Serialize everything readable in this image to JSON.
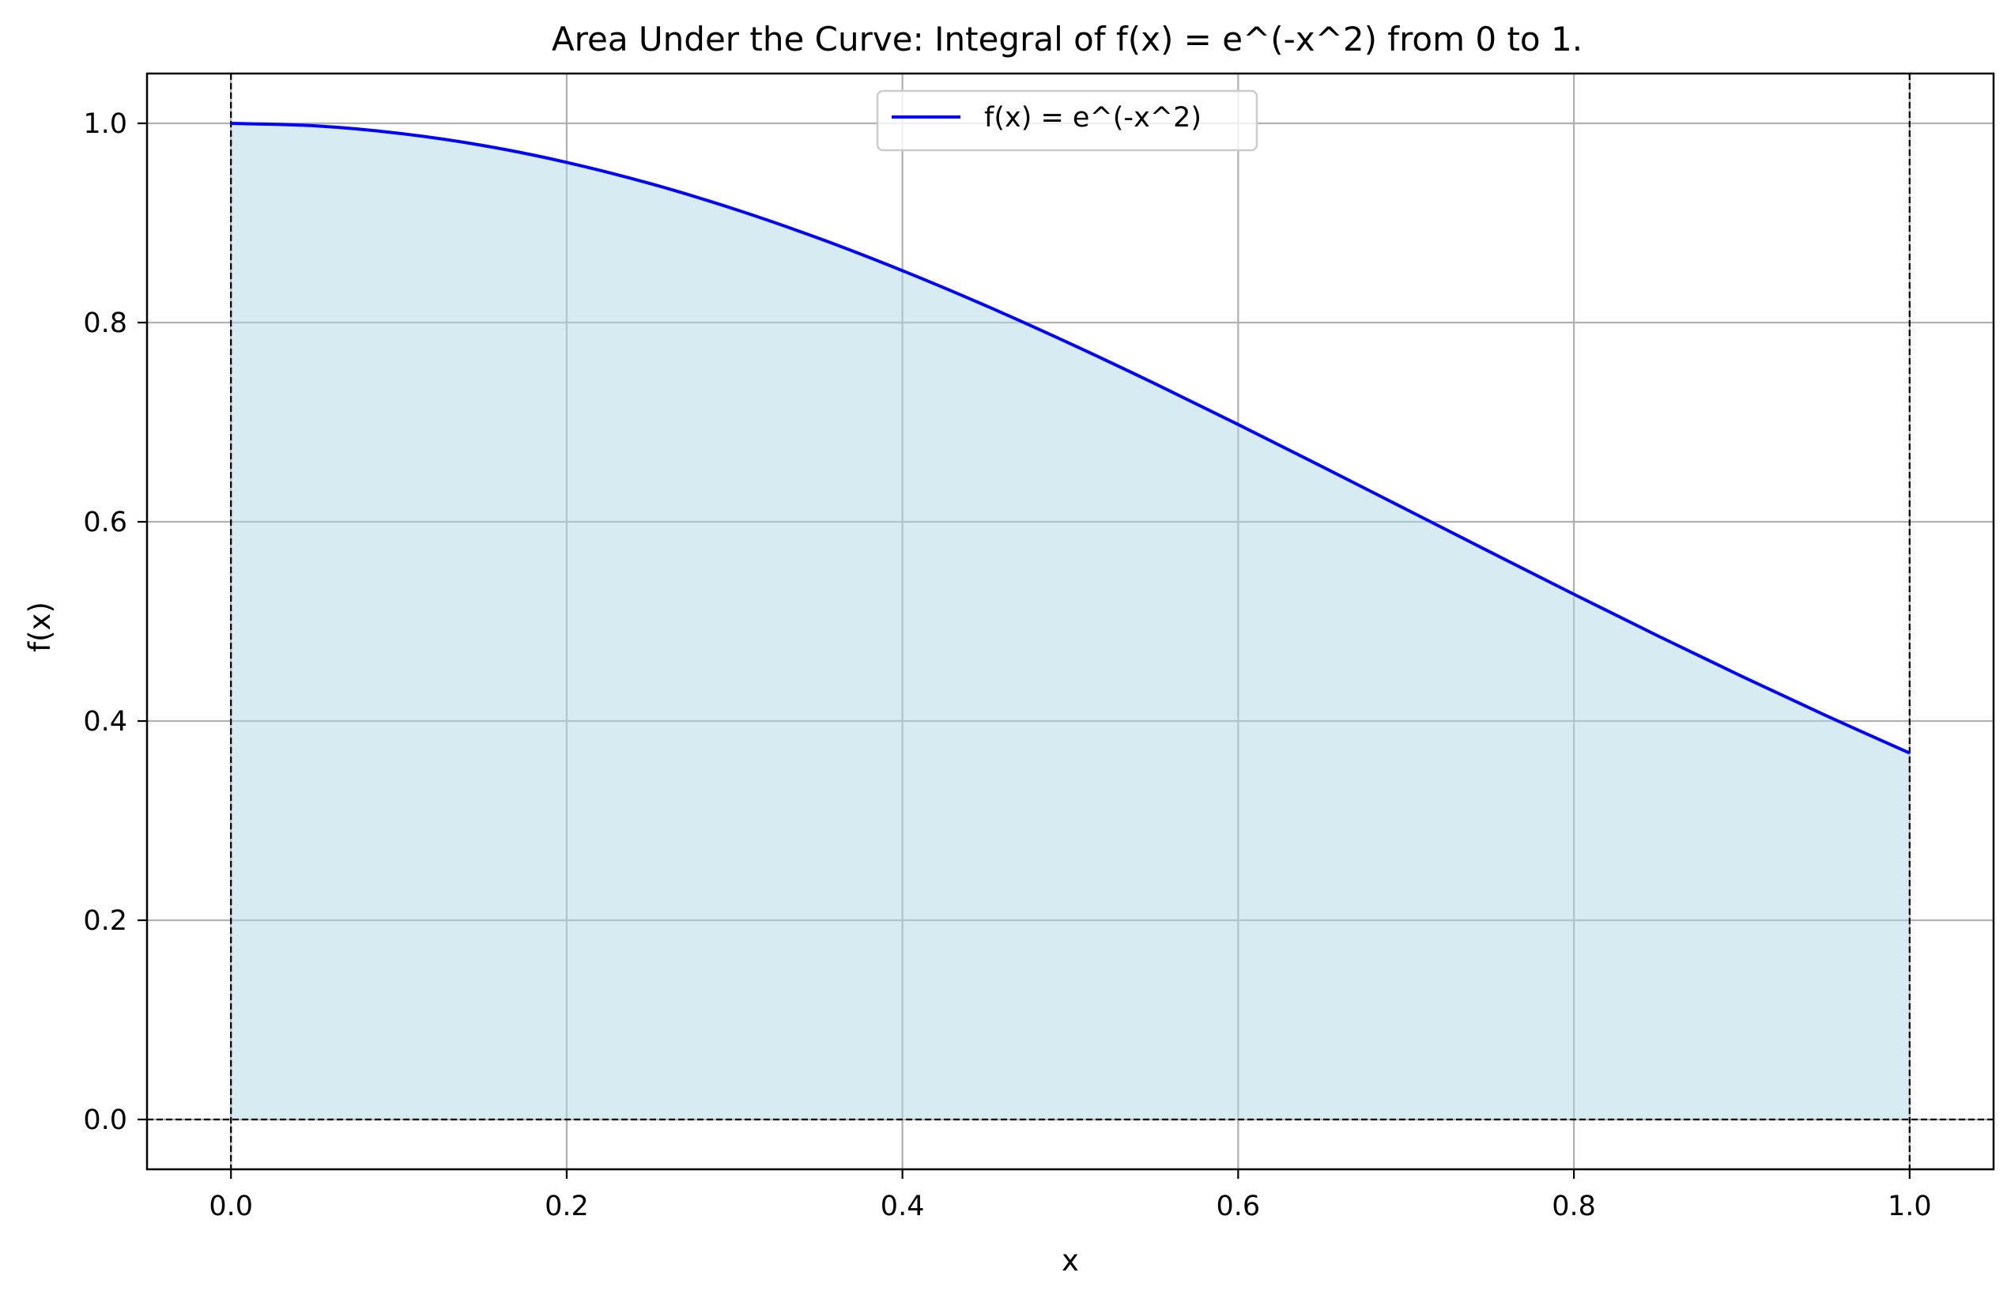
{
  "chart_data": {
    "type": "area",
    "title": "Area Under the Curve: Integral of f(x) = e^(-x^2) from 0 to 1.",
    "xlabel": "x",
    "ylabel": "f(x)",
    "xlim": [
      -0.05,
      1.05
    ],
    "ylim": [
      -0.05,
      1.05
    ],
    "x_ticks": [
      0.0,
      0.2,
      0.4,
      0.6,
      0.8,
      1.0
    ],
    "x_tick_labels": [
      "0.0",
      "0.2",
      "0.4",
      "0.6",
      "0.8",
      "1.0"
    ],
    "y_ticks": [
      0.0,
      0.2,
      0.4,
      0.6,
      0.8,
      1.0
    ],
    "y_tick_labels": [
      "0.0",
      "0.2",
      "0.4",
      "0.6",
      "0.8",
      "1.0"
    ],
    "grid": true,
    "legend_position": "upper center",
    "series": [
      {
        "name": "f(x) = e^(-x^2)",
        "color": "#0000ff",
        "fill_color": "#add8e6",
        "x": [
          0.0,
          0.05,
          0.1,
          0.15,
          0.2,
          0.25,
          0.3,
          0.35,
          0.4,
          0.45,
          0.5,
          0.55,
          0.6,
          0.65,
          0.7,
          0.75,
          0.8,
          0.85,
          0.9,
          0.95,
          1.0
        ],
        "y": [
          1.0,
          0.9975,
          0.99,
          0.9778,
          0.9608,
          0.9394,
          0.9139,
          0.8847,
          0.8521,
          0.8167,
          0.7788,
          0.739,
          0.6977,
          0.6554,
          0.6126,
          0.5698,
          0.5273,
          0.4855,
          0.4449,
          0.4056,
          0.3679
        ]
      }
    ],
    "reference_lines": {
      "vertical_x": [
        0.0,
        1.0
      ],
      "horizontal_y": [
        0.0
      ],
      "style": "dashed",
      "color": "#000000"
    }
  }
}
